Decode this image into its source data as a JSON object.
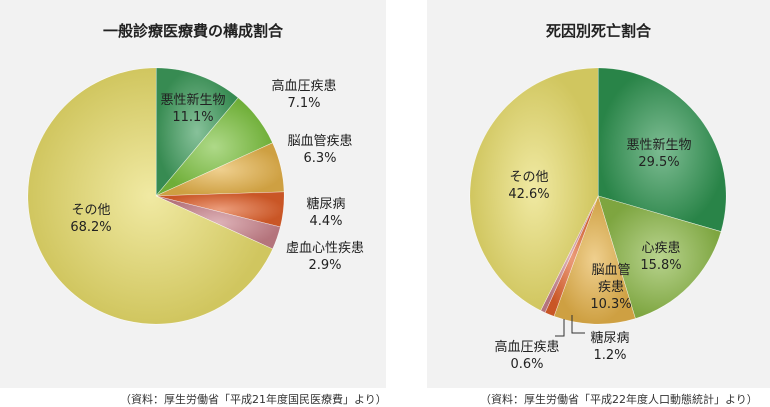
{
  "chart_data": [
    {
      "type": "pie",
      "title": "一般診療医療費の構成割合",
      "source": "（資料：厚生労働省「平成21年度国民医療費」より）",
      "slices": [
        {
          "label": "悪性新生物",
          "value": 11.1,
          "value_text": "11.1%",
          "color": "#3d9b5b"
        },
        {
          "label": "高血圧疾患",
          "value": 7.1,
          "value_text": "7.1%",
          "color": "#7cc23f"
        },
        {
          "label": "脳血管疾患",
          "value": 6.3,
          "value_text": "6.3%",
          "color": "#e6b24a"
        },
        {
          "label": "糖尿病",
          "value": 4.4,
          "value_text": "4.4%",
          "color": "#e0602a"
        },
        {
          "label": "虚血心性疾患",
          "value": 2.9,
          "value_text": "2.9%",
          "color": "#c9828b"
        },
        {
          "label": "その他",
          "value": 68.2,
          "value_text": "68.2%",
          "color": "#e8dc6a"
        }
      ]
    },
    {
      "type": "pie",
      "title": "死因別死亡割合",
      "source": "（資料：厚生労働省「平成22年度人口動態統計」より）",
      "slices": [
        {
          "label": "悪性新生物",
          "value": 29.5,
          "value_text": "29.5%",
          "color": "#2e9350"
        },
        {
          "label": "心疾患",
          "value": 15.8,
          "value_text": "15.8%",
          "color": "#8cb848"
        },
        {
          "label": "脳血管\n疾患",
          "value": 10.3,
          "value_text": "10.3%",
          "color": "#e6b24a"
        },
        {
          "label": "糖尿病",
          "value": 1.2,
          "value_text": "1.2%",
          "color": "#e0602a"
        },
        {
          "label": "高血圧疾患",
          "value": 0.6,
          "value_text": "0.6%",
          "color": "#c9828b"
        },
        {
          "label": "その他",
          "value": 42.6,
          "value_text": "42.6%",
          "color": "#e8dc6a"
        }
      ]
    }
  ]
}
